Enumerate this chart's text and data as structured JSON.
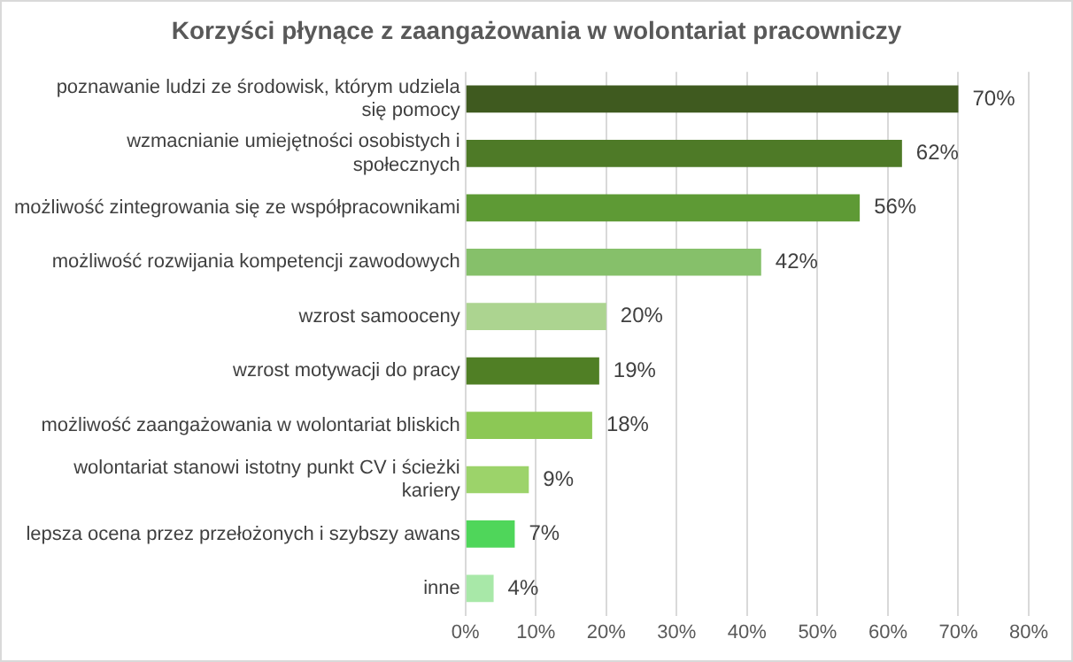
{
  "chart_data": {
    "type": "bar",
    "orientation": "horizontal",
    "title": "Korzyści płynące z zaangażowania w wolontariat pracowniczy",
    "categories": [
      "poznawanie ludzi ze środowisk, którym udziela się pomocy",
      "wzmacnianie umiejętności osobistych i społecznych",
      "możliwość zintegrowania się ze współpracownikami",
      "możliwość rozwijania kompetencji zawodowych",
      "wzrost samooceny",
      "wzrost motywacji do pracy",
      "możliwość zaangażowania w wolontariat bliskich",
      "wolontariat stanowi istotny punkt CV i ścieżki kariery",
      "lepsza ocena przez przełożonych i szybszy awans",
      "inne"
    ],
    "values": [
      70,
      62,
      56,
      42,
      20,
      19,
      18,
      9,
      7,
      4
    ],
    "value_labels": [
      "70%",
      "62%",
      "56%",
      "42%",
      "20%",
      "19%",
      "18%",
      "9%",
      "7%",
      "4%"
    ],
    "colors": [
      "#3f5a1f",
      "#4e7a27",
      "#5e9a35",
      "#86c06a",
      "#acd490",
      "#507f25",
      "#8cc855",
      "#9cd36a",
      "#4fd65a",
      "#a8e8a8"
    ],
    "xlim": [
      0,
      80
    ],
    "xticks": [
      {
        "value": 0,
        "label": "0%"
      },
      {
        "value": 10,
        "label": "10%"
      },
      {
        "value": 20,
        "label": "20%"
      },
      {
        "value": 30,
        "label": "30%"
      },
      {
        "value": 40,
        "label": "40%"
      },
      {
        "value": 50,
        "label": "50%"
      },
      {
        "value": 60,
        "label": "60%"
      },
      {
        "value": 70,
        "label": "70%"
      },
      {
        "value": 80,
        "label": "80%"
      }
    ],
    "grid": "x",
    "legend": false
  }
}
